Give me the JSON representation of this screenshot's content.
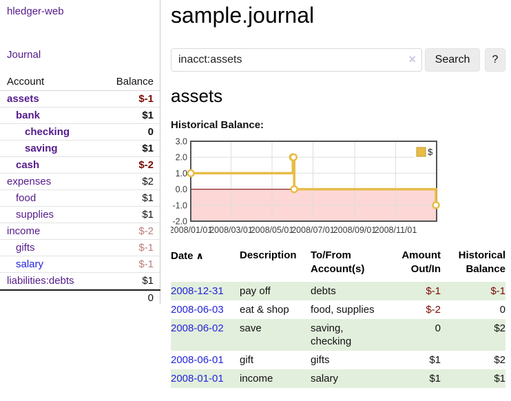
{
  "brand": "hledger-web",
  "nav": {
    "journal": "Journal"
  },
  "sidebar": {
    "header": {
      "account": "Account",
      "balance": "Balance"
    },
    "accounts": [
      {
        "name": "assets",
        "balance": "$-1",
        "indent": 0,
        "in_query": true,
        "tone": "neg-strong",
        "link": "purple"
      },
      {
        "name": "bank",
        "balance": "$1",
        "indent": 1,
        "in_query": true,
        "tone": "pos",
        "link": "purple"
      },
      {
        "name": "checking",
        "balance": "0",
        "indent": 2,
        "in_query": true,
        "tone": "pos",
        "link": "purple"
      },
      {
        "name": "saving",
        "balance": "$1",
        "indent": 2,
        "in_query": true,
        "tone": "pos",
        "link": "purple"
      },
      {
        "name": "cash",
        "balance": "$-2",
        "indent": 1,
        "in_query": true,
        "tone": "neg-strong",
        "link": "purple"
      },
      {
        "name": "expenses",
        "balance": "$2",
        "indent": 0,
        "in_query": false,
        "tone": "pos",
        "link": "purple"
      },
      {
        "name": "food",
        "balance": "$1",
        "indent": 1,
        "in_query": false,
        "tone": "pos",
        "link": "purple"
      },
      {
        "name": "supplies",
        "balance": "$1",
        "indent": 1,
        "in_query": false,
        "tone": "pos",
        "link": "purple"
      },
      {
        "name": "income",
        "balance": "$-2",
        "indent": 0,
        "in_query": false,
        "tone": "neg-dim",
        "link": "purple"
      },
      {
        "name": "gifts",
        "balance": "$-1",
        "indent": 1,
        "in_query": false,
        "tone": "neg-dim",
        "link": "purple"
      },
      {
        "name": "salary",
        "balance": "$-1",
        "indent": 1,
        "in_query": false,
        "tone": "neg-dim",
        "link": "blue"
      },
      {
        "name": "liabilities:debts",
        "balance": "$1",
        "indent": 0,
        "in_query": false,
        "tone": "pos",
        "link": "purple"
      }
    ],
    "total": "0"
  },
  "main": {
    "title": "sample.journal",
    "search": {
      "value": "inacct:assets",
      "clear_icon": "×",
      "search_button": "Search",
      "help_button": "?"
    },
    "account_heading": "assets",
    "chart_heading": "Historical Balance:"
  },
  "chart_data": {
    "type": "line",
    "step": true,
    "title": "Historical Balance",
    "series": [
      {
        "name": "$",
        "color": "#e8bc45",
        "points": [
          [
            "2008-01-01",
            1
          ],
          [
            "2008-06-01",
            2
          ],
          [
            "2008-06-02",
            2
          ],
          [
            "2008-06-03",
            0
          ],
          [
            "2008-12-31",
            -1
          ]
        ]
      }
    ],
    "x_range": [
      "2008-01-01",
      "2009-01-01"
    ],
    "ylim": [
      -2,
      3
    ],
    "y_ticks": [
      "3.0",
      "2.0",
      "1.0",
      "0.0",
      "-1.0",
      "-2.0"
    ],
    "x_ticks": [
      "2008/01/01",
      "2008/03/01",
      "2008/05/01",
      "2008/07/01",
      "2008/09/01",
      "2008/11/01"
    ],
    "legend": {
      "label": "$",
      "position": "top-right"
    },
    "grid": true,
    "negative_region_color": "#fcd7d6",
    "zero_line_color": "#8e2420",
    "plot_border_color": "#545454"
  },
  "transactions": {
    "headers": {
      "date": "Date",
      "sort_icon": "∧",
      "description": "Description",
      "accounts": "To/From Account(s)",
      "amount": "Amount Out/In",
      "balance": "Historical Balance"
    },
    "rows": [
      {
        "date": "2008-12-31",
        "description": "pay off",
        "accounts": "debts",
        "amount": "$-1",
        "amount_negative": true,
        "balance": "$-1",
        "balance_negative": true
      },
      {
        "date": "2008-06-03",
        "description": "eat & shop",
        "accounts": "food, supplies",
        "amount": "$-2",
        "amount_negative": true,
        "balance": "0",
        "balance_negative": false
      },
      {
        "date": "2008-06-02",
        "description": "save",
        "accounts": "saving, checking",
        "amount": "0",
        "amount_negative": false,
        "balance": "$2",
        "balance_negative": false
      },
      {
        "date": "2008-06-01",
        "description": "gift",
        "accounts": "gifts",
        "amount": "$1",
        "amount_negative": false,
        "balance": "$2",
        "balance_negative": false
      },
      {
        "date": "2008-01-01",
        "description": "income",
        "accounts": "salary",
        "amount": "$1",
        "amount_negative": false,
        "balance": "$1",
        "balance_negative": false
      }
    ]
  },
  "colors": {
    "link_purple": "#551a8b",
    "link_blue": "#2323dd",
    "negative_strong": "#7d0a00",
    "negative_dim": "#b97e7e",
    "stripe_green": "#e2efdc",
    "button_bg": "#ececec",
    "grid_line": "#dedede"
  }
}
